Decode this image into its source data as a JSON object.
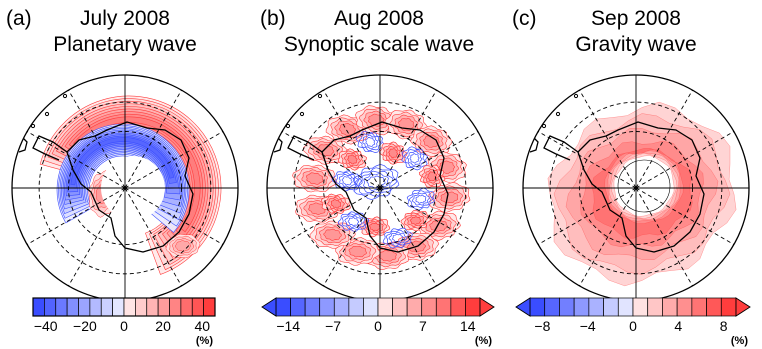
{
  "colors": {
    "negative": "#3a4dff",
    "positive": "#ff3d3d",
    "coast": "#000000",
    "grid": "#000000",
    "land": "#ffffff"
  },
  "panels": [
    {
      "label": "(a)",
      "title_line1": "July 2008",
      "title_line2": "Planetary wave",
      "pattern": "planetary",
      "colorbar": {
        "type": "bounded",
        "n_bins": 16,
        "ticks": [
          "−40",
          "−20",
          "0",
          "20",
          "40"
        ],
        "unit": "(%)"
      }
    },
    {
      "label": "(b)",
      "title_line1": "Aug 2008",
      "title_line2": "Synoptic scale wave",
      "pattern": "synoptic",
      "colorbar": {
        "type": "arrows",
        "n_bins": 14,
        "ticks": [
          "−14",
          "−7",
          "0",
          "7",
          "14"
        ],
        "unit": "(%)"
      }
    },
    {
      "label": "(c)",
      "title_line1": "Sep 2008",
      "title_line2": "Gravity wave",
      "pattern": "gravity",
      "colorbar": {
        "type": "arrows",
        "n_bins": 14,
        "ticks": [
          "−8",
          "−4",
          "0",
          "4",
          "8"
        ],
        "unit": "(%)"
      }
    }
  ]
}
